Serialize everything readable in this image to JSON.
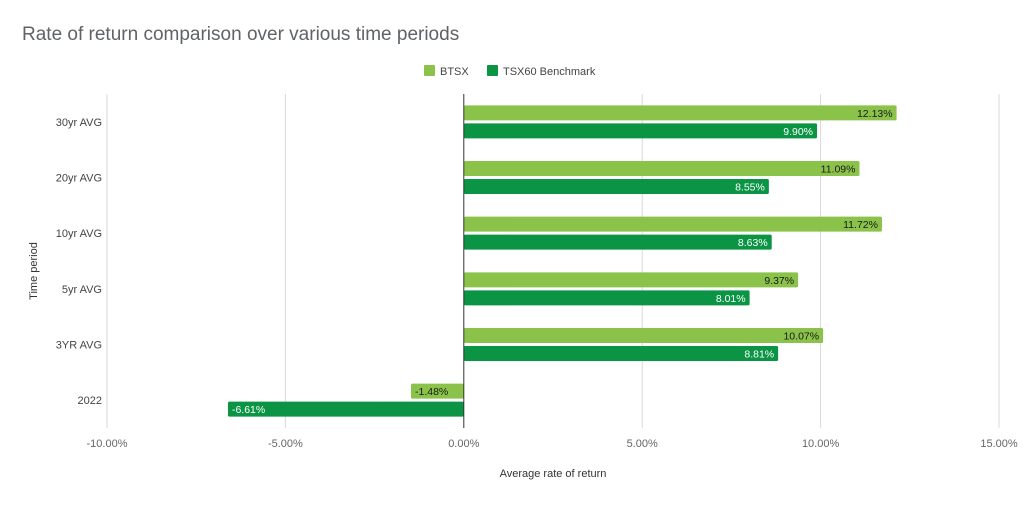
{
  "chart_data": {
    "type": "bar",
    "orientation": "horizontal",
    "title": "Rate of return comparison over various time periods",
    "xlabel": "Average rate of return",
    "ylabel": "Time period",
    "categories": [
      "30yr AVG",
      "20yr AVG",
      "10yr AVG",
      "5yr AVG",
      "3YR AVG",
      "2022"
    ],
    "series": [
      {
        "name": "BTSX",
        "color": "#8bc34a",
        "values": [
          12.13,
          11.09,
          11.72,
          9.37,
          10.07,
          -1.48
        ],
        "labels": [
          "12.13%",
          "11.09%",
          "11.72%",
          "9.37%",
          "10.07%",
          "-1.48%"
        ]
      },
      {
        "name": "TSX60 Benchmark",
        "color": "#0b9444",
        "values": [
          9.9,
          8.55,
          8.63,
          8.01,
          8.81,
          -6.61
        ],
        "labels": [
          "9.90%",
          "8.55%",
          "8.63%",
          "8.01%",
          "8.81%",
          "-6.61%"
        ]
      }
    ],
    "xlim": [
      -10,
      15
    ],
    "xticks": [
      -10,
      -5,
      0,
      5,
      10,
      15
    ],
    "xtick_labels": [
      "-10.00%",
      "-5.00%",
      "0.00%",
      "5.00%",
      "10.00%",
      "15.00%"
    ],
    "grid": true,
    "legend_position": "top"
  }
}
